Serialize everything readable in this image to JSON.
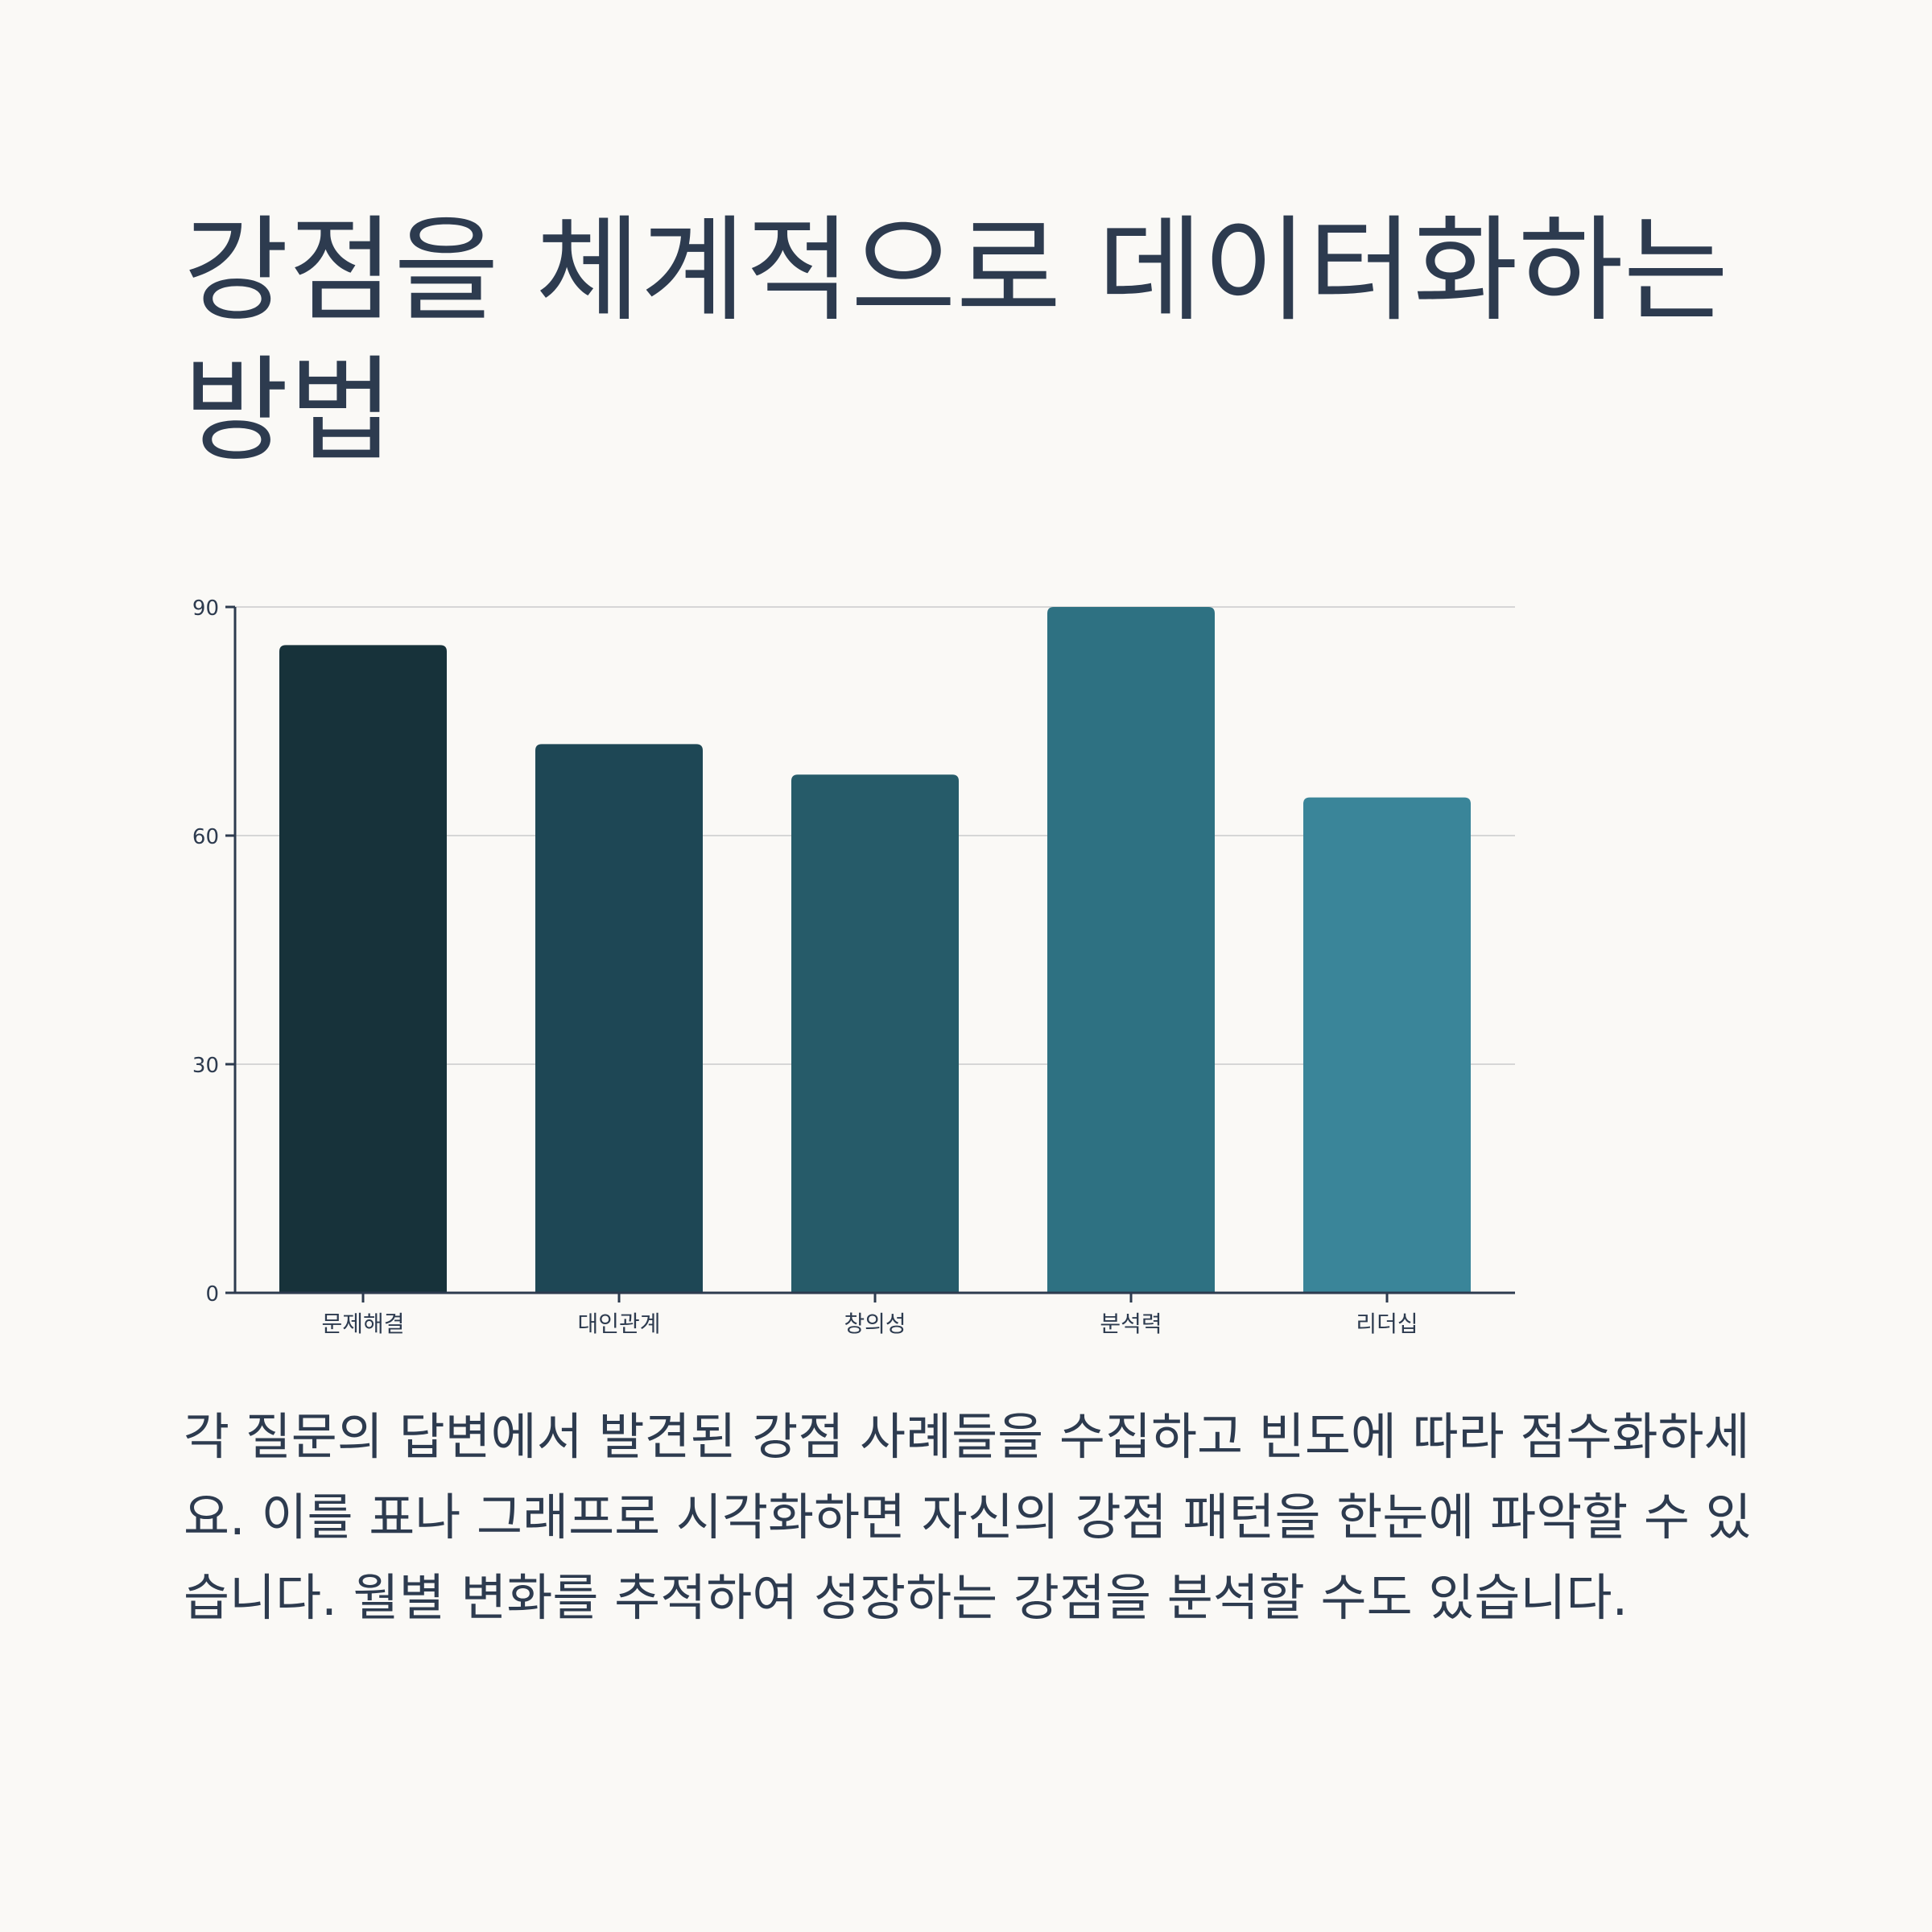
{
  "title": "강점을 체계적으로 데이터화하는 방법",
  "body": "각 질문의 답변에서 발견된 강점 사례들을 수집하고 빈도에 따라 점수화하세요. 이를 표나 그래프로 시각화하면 자신의 강점 패턴을 한눈에 파악할 수 있습니다. 월별 변화를 추적하여 성장하는 강점을 분석할 수도 있습니다.",
  "chart_data": {
    "type": "bar",
    "categories": [
      "문제해결",
      "대인관계",
      "창의성",
      "분석력",
      "리더십"
    ],
    "values": [
      85,
      72,
      68,
      90,
      65
    ],
    "colors": [
      "#17323a",
      "#1e4755",
      "#265b69",
      "#2e7182",
      "#3a8599"
    ],
    "yticks": [
      0,
      30,
      60,
      90
    ],
    "ylim": [
      0,
      90
    ],
    "grid": true,
    "title": "",
    "xlabel": "",
    "ylabel": ""
  }
}
